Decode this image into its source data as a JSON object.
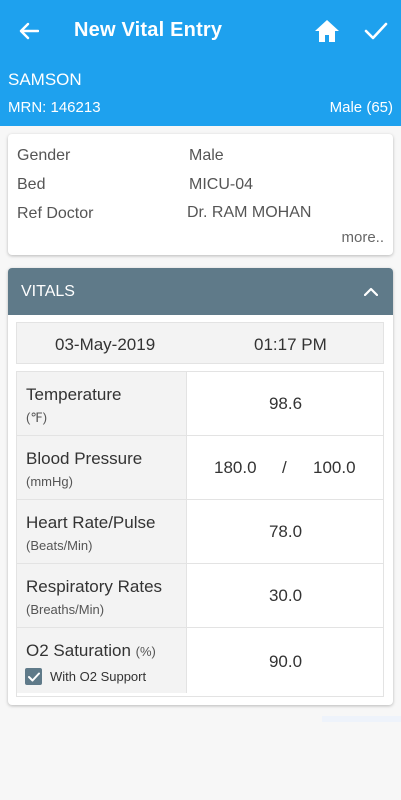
{
  "appbar": {
    "title": "New Vital Entry",
    "back_icon": "arrow-left-icon",
    "home_icon": "home-icon",
    "done_icon": "check-icon",
    "color": "#1ea1ee"
  },
  "patient": {
    "name": "SAMSON",
    "mrn": "MRN: 146213",
    "gender_age": "Male (65)"
  },
  "info": {
    "gender_label": "Gender",
    "gender_value": "Male",
    "bed_label": "Bed",
    "bed_value": "MICU-04",
    "ref_doctor_label": "Ref Doctor",
    "ref_doctor_value": "Dr. RAM MOHAN",
    "more_label": "more.."
  },
  "vitals": {
    "header": "VITALS",
    "header_color": "#5f7a89",
    "collapse_icon": "chevron-up-icon",
    "date": "03-May-2019",
    "time": "01:17 PM",
    "temperature": {
      "label": "Temperature",
      "unit": "(℉)",
      "value": "98.6"
    },
    "blood_pressure": {
      "label": "Blood Pressure",
      "unit": "(mmHg)",
      "systolic": "180.0",
      "separator": "/",
      "diastolic": "100.0"
    },
    "heart_rate": {
      "label": "Heart Rate/Pulse",
      "unit": "(Beats/Min)",
      "value": "78.0"
    },
    "respiratory": {
      "label": "Respiratory Rates",
      "unit": "(Breaths/Min)",
      "value": "30.0"
    },
    "o2": {
      "label": "O2 Saturation",
      "unit": "(%)",
      "value": "90.0",
      "support_label": "With O2 Support",
      "support_checked": true
    }
  }
}
